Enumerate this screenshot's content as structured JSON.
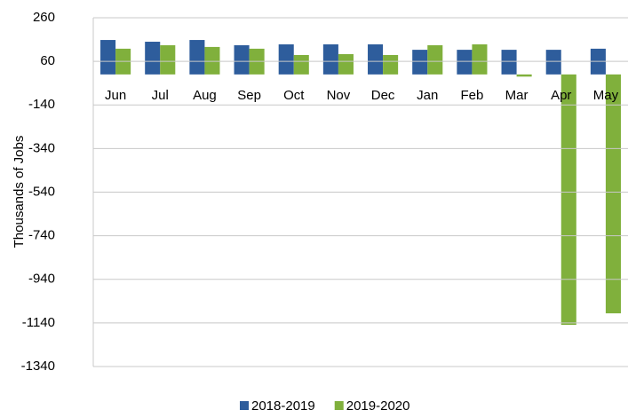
{
  "chart_data": {
    "type": "bar",
    "y_axis_label": "Thousands of Jobs",
    "categories": [
      "Jun",
      "Jul",
      "Aug",
      "Sep",
      "Oct",
      "Nov",
      "Dec",
      "Jan",
      "Feb",
      "Mar",
      "Apr",
      "May"
    ],
    "series": [
      {
        "name": "2018-2019",
        "color": "#2e5d9c",
        "values": [
          158,
          150,
          158,
          134,
          138,
          138,
          138,
          113,
          113,
          113,
          113,
          118
        ]
      },
      {
        "name": "2019-2020",
        "color": "#80b03c",
        "values": [
          118,
          134,
          126,
          118,
          89,
          93,
          89,
          134,
          138,
          -10,
          -1149,
          -1096
        ]
      }
    ],
    "ylim": [
      -1340,
      260
    ],
    "yticks": [
      -1340,
      -1140,
      -940,
      -740,
      -540,
      -340,
      -140,
      60,
      260
    ],
    "grid": true,
    "legend": "bottom"
  }
}
